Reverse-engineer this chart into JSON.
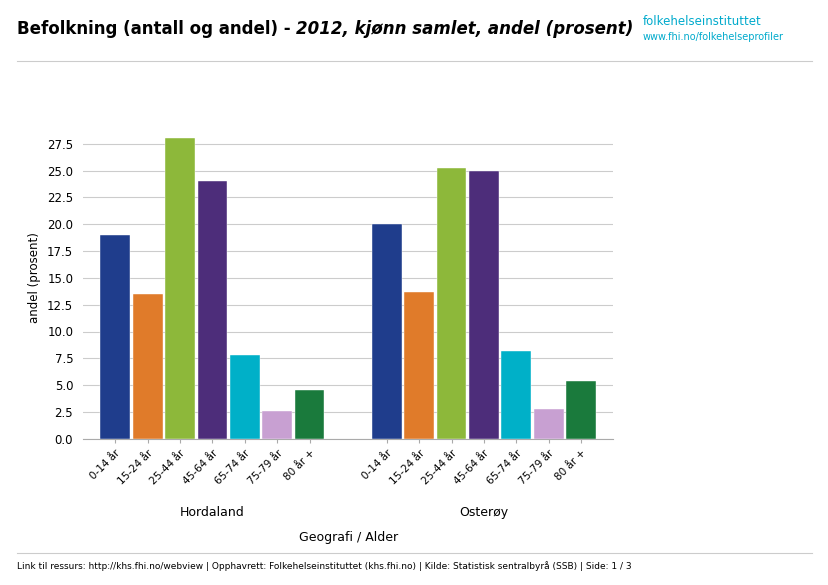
{
  "title_normal": "Befolkning (antall og andel) - ",
  "title_italic": "2012, kjønn samlet, andel (prosent)",
  "xlabel": "Geografi / Alder",
  "ylabel": "andel (prosent)",
  "regions": [
    "Hordaland",
    "Osterøy"
  ],
  "age_groups": [
    "0-14 år",
    "15-24 år",
    "25-44 år",
    "45-64 år",
    "65-74 år",
    "75-79 år",
    "80 år +"
  ],
  "hordaland_values": [
    19.0,
    13.5,
    28.0,
    24.0,
    7.8,
    2.6,
    4.5
  ],
  "osteroy_values": [
    20.0,
    13.7,
    25.2,
    25.0,
    8.2,
    2.8,
    5.4
  ],
  "bar_colors": [
    "#1f3d8c",
    "#e07b2a",
    "#8db83a",
    "#4d2d7a",
    "#00b0c8",
    "#c8a0d2",
    "#1a7a3c"
  ],
  "ylim": [
    0,
    30
  ],
  "yticks": [
    0.0,
    2.5,
    5.0,
    7.5,
    10.0,
    12.5,
    15.0,
    17.5,
    20.0,
    22.5,
    25.0,
    27.5
  ],
  "background_color": "#ffffff",
  "grid_color": "#cccccc",
  "footer_text": "Link til ressurs: http://khs.fhi.no/webview | Opphavrett: Folkehelseinstituttet (khs.fhi.no) | Kilde: Statistisk sentralbyrå (SSB) | Side: 1 / 3",
  "logo_color": "#00aacc",
  "logo_text": "folkehelseinstituttet",
  "logo_subtext": "www.fhi.no/folkehelseprofiler"
}
